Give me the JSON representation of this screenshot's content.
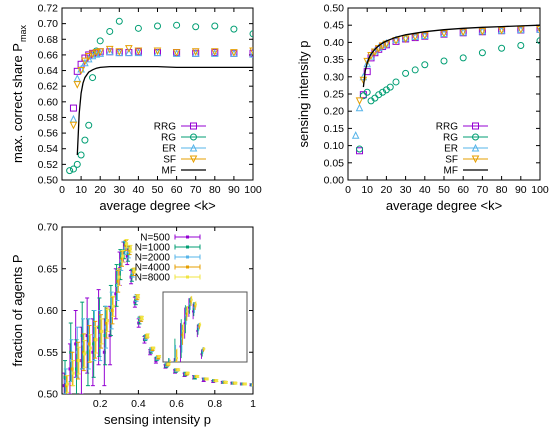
{
  "chart_data": [
    {
      "type": "scatter",
      "xlabel": "average degree <k>",
      "ylabel": "max. correct share P",
      "ylabel_sub": "max",
      "xlim": [
        0,
        100
      ],
      "ylim": [
        0.5,
        0.72
      ],
      "xticks": [
        0,
        10,
        20,
        30,
        40,
        50,
        60,
        70,
        80,
        90,
        100
      ],
      "yticks": [
        0.5,
        0.52,
        0.54,
        0.56,
        0.58,
        0.6,
        0.62,
        0.64,
        0.66,
        0.68,
        0.7,
        0.72
      ],
      "ytick_decimals": 2,
      "legend_position": "bottom-right",
      "series": [
        {
          "name": "RRG",
          "marker": "square",
          "color": "#9400d3",
          "x": [
            6,
            8,
            10,
            12,
            14,
            16,
            18,
            20,
            25,
            30,
            35,
            40,
            50,
            60,
            70,
            80,
            90,
            100
          ],
          "y": [
            0.592,
            0.639,
            0.648,
            0.656,
            0.66,
            0.662,
            0.663,
            0.664,
            0.664,
            0.663,
            0.663,
            0.664,
            0.663,
            0.663,
            0.662,
            0.663,
            0.662,
            0.662
          ]
        },
        {
          "name": "RG",
          "marker": "circle",
          "color": "#009e73",
          "x": [
            4,
            6,
            8,
            10,
            12,
            14,
            16,
            18,
            20,
            25,
            30,
            40,
            50,
            60,
            70,
            80,
            90,
            100
          ],
          "y": [
            0.512,
            0.514,
            0.52,
            0.532,
            0.551,
            0.57,
            0.631,
            0.665,
            0.678,
            0.69,
            0.703,
            0.694,
            0.697,
            0.698,
            0.696,
            0.697,
            0.693,
            0.687
          ]
        },
        {
          "name": "ER",
          "marker": "triangle-up",
          "color": "#56b4e9",
          "x": [
            6,
            8,
            10,
            12,
            14,
            16,
            18,
            20,
            25,
            30,
            35,
            40,
            50,
            60,
            70,
            80,
            90,
            100
          ],
          "y": [
            0.578,
            0.63,
            0.642,
            0.65,
            0.655,
            0.659,
            0.661,
            0.662,
            0.664,
            0.663,
            0.663,
            0.663,
            0.663,
            0.662,
            0.662,
            0.662,
            0.662,
            0.661
          ]
        },
        {
          "name": "SF",
          "marker": "triangle-down",
          "color": "#e69f00",
          "x": [
            6,
            8,
            10,
            12,
            14,
            16,
            18,
            20,
            25,
            30,
            35,
            40,
            50,
            60,
            70,
            80,
            90,
            100
          ],
          "y": [
            0.57,
            0.622,
            0.64,
            0.652,
            0.658,
            0.661,
            0.663,
            0.664,
            0.667,
            0.664,
            0.668,
            0.665,
            0.665,
            0.663,
            0.664,
            0.664,
            0.663,
            0.665
          ]
        },
        {
          "name": "MF",
          "marker": "line",
          "color": "#000000",
          "x": [
            8,
            9,
            10,
            11,
            12,
            14,
            16,
            18,
            20,
            25,
            30,
            40,
            50,
            60,
            70,
            80,
            90,
            100
          ],
          "y": [
            0.532,
            0.585,
            0.611,
            0.624,
            0.631,
            0.638,
            0.641,
            0.643,
            0.644,
            0.645,
            0.645,
            0.645,
            0.645,
            0.644,
            0.644,
            0.644,
            0.644,
            0.644
          ]
        }
      ]
    },
    {
      "type": "scatter",
      "xlabel": "average degree <k>",
      "ylabel": "sensing intensity p",
      "xlim": [
        0,
        100
      ],
      "ylim": [
        0,
        0.5
      ],
      "xticks": [
        0,
        10,
        20,
        30,
        40,
        50,
        60,
        70,
        80,
        90,
        100
      ],
      "yticks": [
        0,
        0.05,
        0.1,
        0.15,
        0.2,
        0.25,
        0.3,
        0.35,
        0.4,
        0.45,
        0.5
      ],
      "ytick_decimals": 2,
      "legend_position": "bottom-right",
      "series": [
        {
          "name": "RRG",
          "marker": "square",
          "color": "#9400d3",
          "x": [
            6,
            8,
            10,
            12,
            14,
            16,
            18,
            20,
            25,
            30,
            35,
            40,
            50,
            60,
            70,
            80,
            90,
            100
          ],
          "y": [
            0.085,
            0.248,
            0.315,
            0.355,
            0.37,
            0.38,
            0.388,
            0.393,
            0.403,
            0.41,
            0.414,
            0.418,
            0.424,
            0.428,
            0.431,
            0.434,
            0.436,
            0.438
          ]
        },
        {
          "name": "RG",
          "marker": "circle",
          "color": "#009e73",
          "x": [
            6,
            8,
            10,
            12,
            14,
            16,
            18,
            20,
            22,
            25,
            30,
            35,
            40,
            50,
            60,
            70,
            80,
            90,
            100
          ],
          "y": [
            0.09,
            0.245,
            0.255,
            0.23,
            0.238,
            0.248,
            0.255,
            0.262,
            0.27,
            0.285,
            0.31,
            0.32,
            0.335,
            0.346,
            0.355,
            0.37,
            0.383,
            0.391,
            0.405
          ]
        },
        {
          "name": "ER",
          "marker": "triangle-up",
          "color": "#56b4e9",
          "x": [
            4,
            6,
            8,
            10,
            12,
            14,
            16,
            18,
            20,
            25,
            30,
            35,
            40,
            50,
            60,
            70,
            80,
            90,
            100
          ],
          "y": [
            0.13,
            0.21,
            0.3,
            0.338,
            0.36,
            0.375,
            0.385,
            0.392,
            0.398,
            0.408,
            0.413,
            0.417,
            0.42,
            0.426,
            0.43,
            0.433,
            0.435,
            0.437,
            0.438
          ]
        },
        {
          "name": "SF",
          "marker": "triangle-down",
          "color": "#e69f00",
          "x": [
            6,
            8,
            10,
            12,
            14,
            16,
            18,
            20,
            25,
            30,
            35,
            40,
            50,
            60,
            70,
            80,
            90,
            100
          ],
          "y": [
            0.23,
            0.29,
            0.345,
            0.362,
            0.372,
            0.382,
            0.39,
            0.395,
            0.405,
            0.41,
            0.416,
            0.42,
            0.426,
            0.43,
            0.432,
            0.435,
            0.437,
            0.438
          ]
        },
        {
          "name": "MF",
          "marker": "line",
          "color": "#000000",
          "x": [
            8,
            9,
            10,
            11,
            12,
            14,
            16,
            18,
            20,
            25,
            30,
            40,
            50,
            60,
            70,
            80,
            90,
            100
          ],
          "y": [
            0.27,
            0.318,
            0.34,
            0.355,
            0.366,
            0.38,
            0.39,
            0.398,
            0.404,
            0.415,
            0.422,
            0.431,
            0.437,
            0.441,
            0.444,
            0.446,
            0.448,
            0.45
          ]
        }
      ]
    },
    {
      "type": "scatter",
      "xlabel": "sensing intensity p",
      "ylabel": "fraction of agents P",
      "xlim": [
        0,
        1
      ],
      "ylim": [
        0.5,
        0.7
      ],
      "xticks": [
        0.2,
        0.4,
        0.6,
        0.8,
        1
      ],
      "xtick_labels": [
        "0.2",
        "0.4",
        "0.6",
        "0.8",
        "1"
      ],
      "yticks": [
        0.5,
        0.55,
        0.6,
        0.65,
        0.7
      ],
      "ytick_decimals": 2,
      "legend_position": "top-right",
      "series": [
        {
          "name": "N=500",
          "marker": "errorbar",
          "color": "#9400d3",
          "x": [
            0.02,
            0.05,
            0.08,
            0.11,
            0.14,
            0.17,
            0.2,
            0.23,
            0.26,
            0.29,
            0.31,
            0.33,
            0.35,
            0.37,
            0.39,
            0.41,
            0.44,
            0.47,
            0.5,
            0.55,
            0.6,
            0.65,
            0.7,
            0.75,
            0.8,
            0.85,
            0.9,
            0.95,
            1.0
          ],
          "y": [
            0.51,
            0.53,
            0.56,
            0.54,
            0.57,
            0.55,
            0.58,
            0.55,
            0.57,
            0.62,
            0.65,
            0.67,
            0.665,
            0.64,
            0.61,
            0.585,
            0.565,
            0.55,
            0.54,
            0.533,
            0.527,
            0.523,
            0.52,
            0.517,
            0.515,
            0.514,
            0.513,
            0.512,
            0.511
          ],
          "err": [
            0.015,
            0.03,
            0.04,
            0.04,
            0.045,
            0.04,
            0.045,
            0.04,
            0.035,
            0.03,
            0.02,
            0.012,
            0.01,
            0.008,
            0.006,
            0.005,
            0.004,
            0.003,
            0.003,
            0.002,
            0.002,
            0.002,
            0.002,
            0.002,
            0.001,
            0.001,
            0.001,
            0.001,
            0.001
          ]
        },
        {
          "name": "N=1000",
          "marker": "errorbar",
          "color": "#009e73",
          "x": [
            0.02,
            0.05,
            0.08,
            0.11,
            0.14,
            0.17,
            0.2,
            0.23,
            0.26,
            0.29,
            0.31,
            0.33,
            0.35,
            0.37,
            0.39,
            0.41,
            0.44,
            0.47,
            0.5,
            0.55,
            0.6,
            0.65,
            0.7,
            0.75,
            0.8,
            0.85,
            0.9,
            0.95,
            1.0
          ],
          "y": [
            0.52,
            0.55,
            0.53,
            0.57,
            0.55,
            0.56,
            0.58,
            0.57,
            0.6,
            0.63,
            0.655,
            0.672,
            0.668,
            0.642,
            0.612,
            0.588,
            0.567,
            0.552,
            0.542,
            0.534,
            0.528,
            0.524,
            0.52,
            0.518,
            0.516,
            0.514,
            0.513,
            0.512,
            0.511
          ],
          "err": [
            0.02,
            0.035,
            0.035,
            0.04,
            0.04,
            0.04,
            0.035,
            0.035,
            0.03,
            0.025,
            0.018,
            0.01,
            0.009,
            0.007,
            0.005,
            0.004,
            0.003,
            0.003,
            0.002,
            0.002,
            0.002,
            0.002,
            0.002,
            0.001,
            0.001,
            0.001,
            0.001,
            0.001,
            0.001
          ]
        },
        {
          "name": "N=2000",
          "marker": "errorbar",
          "color": "#56b4e9",
          "x": [
            0.02,
            0.05,
            0.08,
            0.11,
            0.14,
            0.17,
            0.2,
            0.23,
            0.26,
            0.29,
            0.31,
            0.33,
            0.35,
            0.37,
            0.39,
            0.41,
            0.44,
            0.47,
            0.5,
            0.55,
            0.6,
            0.65,
            0.7,
            0.75,
            0.8,
            0.85,
            0.9,
            0.95,
            1.0
          ],
          "y": [
            0.515,
            0.54,
            0.55,
            0.56,
            0.56,
            0.57,
            0.57,
            0.58,
            0.6,
            0.63,
            0.66,
            0.675,
            0.67,
            0.645,
            0.615,
            0.59,
            0.568,
            0.553,
            0.543,
            0.535,
            0.528,
            0.524,
            0.521,
            0.518,
            0.516,
            0.514,
            0.513,
            0.512,
            0.511
          ],
          "err": [
            0.015,
            0.025,
            0.03,
            0.03,
            0.03,
            0.03,
            0.03,
            0.025,
            0.022,
            0.018,
            0.012,
            0.008,
            0.007,
            0.005,
            0.004,
            0.003,
            0.003,
            0.002,
            0.002,
            0.002,
            0.001,
            0.001,
            0.001,
            0.001,
            0.001,
            0.001,
            0.001,
            0.001,
            0.001
          ]
        },
        {
          "name": "N=4000",
          "marker": "errorbar",
          "color": "#e69f00",
          "x": [
            0.02,
            0.05,
            0.08,
            0.11,
            0.14,
            0.17,
            0.2,
            0.23,
            0.26,
            0.29,
            0.31,
            0.33,
            0.35,
            0.37,
            0.39,
            0.41,
            0.44,
            0.47,
            0.5,
            0.55,
            0.6,
            0.65,
            0.7,
            0.75,
            0.8,
            0.85,
            0.9,
            0.95,
            1.0
          ],
          "y": [
            0.51,
            0.53,
            0.54,
            0.55,
            0.56,
            0.565,
            0.575,
            0.585,
            0.6,
            0.635,
            0.662,
            0.678,
            0.672,
            0.646,
            0.616,
            0.59,
            0.569,
            0.554,
            0.544,
            0.535,
            0.529,
            0.524,
            0.521,
            0.518,
            0.516,
            0.514,
            0.513,
            0.512,
            0.511
          ],
          "err": [
            0.012,
            0.02,
            0.022,
            0.022,
            0.022,
            0.022,
            0.02,
            0.018,
            0.016,
            0.013,
            0.009,
            0.006,
            0.005,
            0.004,
            0.003,
            0.003,
            0.002,
            0.002,
            0.002,
            0.001,
            0.001,
            0.001,
            0.001,
            0.001,
            0.001,
            0.001,
            0.001,
            0.001,
            0.001
          ]
        },
        {
          "name": "N=8000",
          "marker": "errorbar",
          "color": "#f0e442",
          "x": [
            0.02,
            0.05,
            0.08,
            0.11,
            0.14,
            0.17,
            0.2,
            0.23,
            0.26,
            0.29,
            0.31,
            0.33,
            0.35,
            0.37,
            0.39,
            0.41,
            0.44,
            0.47,
            0.5,
            0.55,
            0.6,
            0.65,
            0.7,
            0.75,
            0.8,
            0.85,
            0.9,
            0.95,
            1.0
          ],
          "y": [
            0.512,
            0.525,
            0.54,
            0.548,
            0.555,
            0.565,
            0.575,
            0.588,
            0.605,
            0.64,
            0.665,
            0.68,
            0.674,
            0.648,
            0.617,
            0.591,
            0.57,
            0.555,
            0.545,
            0.536,
            0.529,
            0.525,
            0.521,
            0.518,
            0.516,
            0.514,
            0.513,
            0.512,
            0.511
          ],
          "err": [
            0.01,
            0.015,
            0.016,
            0.016,
            0.016,
            0.016,
            0.015,
            0.013,
            0.012,
            0.01,
            0.007,
            0.005,
            0.004,
            0.003,
            0.002,
            0.002,
            0.002,
            0.001,
            0.001,
            0.001,
            0.001,
            0.001,
            0.001,
            0.001,
            0.001,
            0.001,
            0.001,
            0.001,
            0.001
          ]
        }
      ],
      "inset": {
        "xlim": [
          0.2,
          0.6
        ],
        "ylim": [
          0.6,
          0.69
        ],
        "series_source": "same as main panel"
      }
    }
  ]
}
